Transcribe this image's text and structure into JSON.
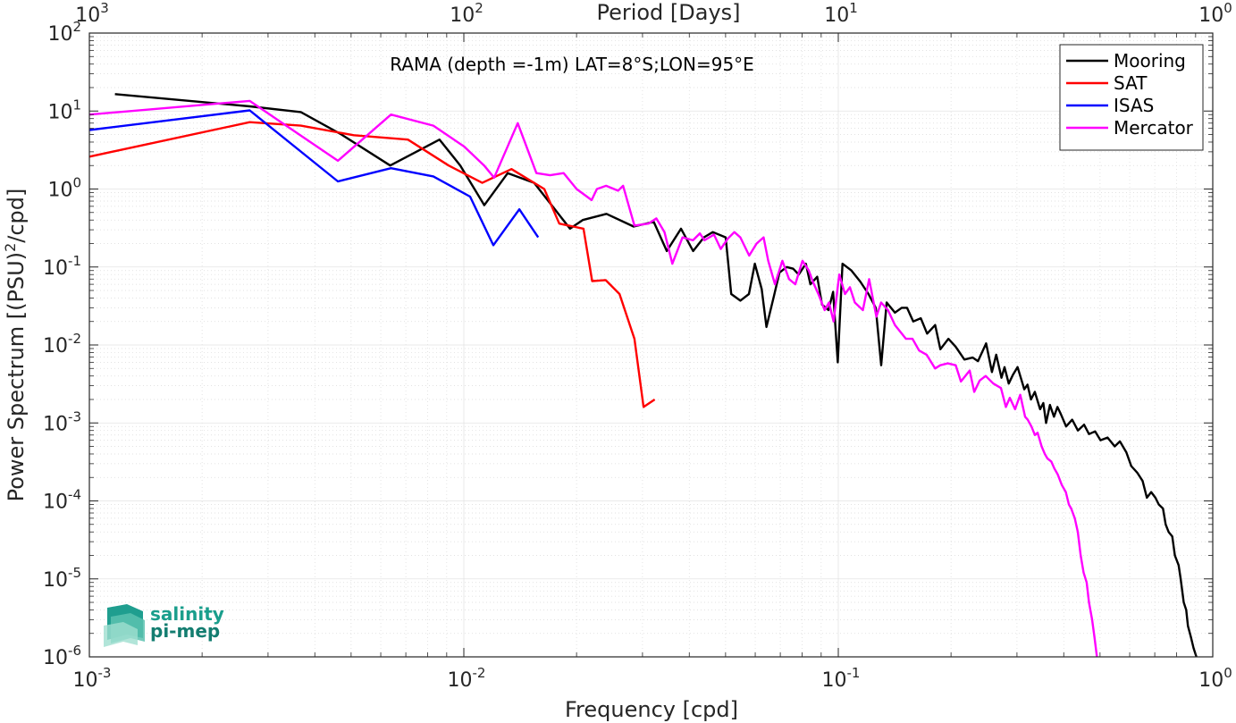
{
  "chart_data": {
    "type": "line",
    "annotation": "RAMA (depth =-1m) LAT=8°S;LON=95°E",
    "xlabel": "Frequency [cpd]",
    "ylabel": "Power Spectrum [(PSU)²/cpd]",
    "ylabel_parts": {
      "pre": "Power Spectrum [(PSU)",
      "sup": "2",
      "post": "/cpd]"
    },
    "top_xlabel": "Period [Days]",
    "xscale": "log",
    "yscale": "log",
    "xlim": [
      0.001,
      1
    ],
    "ylim": [
      1e-06,
      100
    ],
    "x_ticks": [
      {
        "base": "10",
        "exp": "-3",
        "value": 0.001
      },
      {
        "base": "10",
        "exp": "-2",
        "value": 0.01
      },
      {
        "base": "10",
        "exp": "-1",
        "value": 0.1
      },
      {
        "base": "10",
        "exp": "0",
        "value": 1
      }
    ],
    "top_ticks": [
      {
        "base": "10",
        "exp": "3",
        "value": 0.001
      },
      {
        "base": "10",
        "exp": "2",
        "value": 0.01
      },
      {
        "base": "10",
        "exp": "1",
        "value": 0.1
      },
      {
        "base": "10",
        "exp": "0",
        "value": 1
      }
    ],
    "y_ticks": [
      {
        "base": "10",
        "exp": "2",
        "value": 100
      },
      {
        "base": "10",
        "exp": "1",
        "value": 10
      },
      {
        "base": "10",
        "exp": "0",
        "value": 1
      },
      {
        "base": "10",
        "exp": "-1",
        "value": 0.1
      },
      {
        "base": "10",
        "exp": "-2",
        "value": 0.01
      },
      {
        "base": "10",
        "exp": "-3",
        "value": 0.001
      },
      {
        "base": "10",
        "exp": "-4",
        "value": 0.0001
      },
      {
        "base": "10",
        "exp": "-5",
        "value": 1e-05
      },
      {
        "base": "10",
        "exp": "-6",
        "value": 1e-06
      }
    ],
    "grid": true,
    "legend_position": "top-right",
    "series": [
      {
        "name": "Mooring",
        "color": "#000000",
        "points": [
          [
            0.00117,
            16.5
          ],
          [
            0.00268,
            11.5
          ],
          [
            0.00367,
            9.7
          ],
          [
            0.00471,
            5.0
          ],
          [
            0.00636,
            2.0
          ],
          [
            0.00861,
            4.3
          ],
          [
            0.00978,
            2.0
          ],
          [
            0.01134,
            0.62
          ],
          [
            0.0131,
            1.6
          ],
          [
            0.01541,
            1.2
          ],
          [
            0.01921,
            0.31
          ],
          [
            0.02077,
            0.4
          ],
          [
            0.02404,
            0.48
          ],
          [
            0.02841,
            0.33
          ],
          [
            0.03215,
            0.38
          ],
          [
            0.03484,
            0.16
          ],
          [
            0.03801,
            0.31
          ],
          [
            0.04096,
            0.16
          ],
          [
            0.04375,
            0.24
          ],
          [
            0.04624,
            0.28
          ],
          [
            0.05003,
            0.24
          ],
          [
            0.05178,
            0.045
          ],
          [
            0.05476,
            0.037
          ],
          [
            0.05772,
            0.045
          ],
          [
            0.05984,
            0.11
          ],
          [
            0.06243,
            0.052
          ],
          [
            0.06429,
            0.017
          ],
          [
            0.06729,
            0.042
          ],
          [
            0.06966,
            0.085
          ],
          [
            0.07283,
            0.1
          ],
          [
            0.07576,
            0.095
          ],
          [
            0.07838,
            0.08
          ],
          [
            0.0819,
            0.11
          ],
          [
            0.08425,
            0.06
          ],
          [
            0.08783,
            0.075
          ],
          [
            0.0905,
            0.033
          ],
          [
            0.09412,
            0.028
          ],
          [
            0.09688,
            0.048
          ],
          [
            0.09965,
            0.006
          ],
          [
            0.1026,
            0.11
          ],
          [
            0.1084,
            0.09
          ],
          [
            0.1145,
            0.065
          ],
          [
            0.1204,
            0.045
          ],
          [
            0.1259,
            0.03
          ],
          [
            0.1302,
            0.0055
          ],
          [
            0.1346,
            0.035
          ],
          [
            0.1417,
            0.026
          ],
          [
            0.1477,
            0.03
          ],
          [
            0.1526,
            0.03
          ],
          [
            0.1586,
            0.02
          ],
          [
            0.1661,
            0.022
          ],
          [
            0.1727,
            0.014
          ],
          [
            0.1814,
            0.018
          ],
          [
            0.1873,
            0.0088
          ],
          [
            0.1968,
            0.012
          ],
          [
            0.2058,
            0.0095
          ],
          [
            0.2172,
            0.0065
          ],
          [
            0.2285,
            0.0069
          ],
          [
            0.2361,
            0.0062
          ],
          [
            0.2482,
            0.0105
          ],
          [
            0.2572,
            0.0045
          ],
          [
            0.2641,
            0.0075
          ],
          [
            0.2728,
            0.0038
          ],
          [
            0.2779,
            0.0052
          ],
          [
            0.2852,
            0.0032
          ],
          [
            0.2924,
            0.0041
          ],
          [
            0.3012,
            0.0052
          ],
          [
            0.3067,
            0.0039
          ],
          [
            0.3138,
            0.0027
          ],
          [
            0.3201,
            0.0031
          ],
          [
            0.327,
            0.002
          ],
          [
            0.3349,
            0.0025
          ],
          [
            0.3459,
            0.0015
          ],
          [
            0.3528,
            0.0018
          ],
          [
            0.3589,
            0.001
          ],
          [
            0.3675,
            0.0017
          ],
          [
            0.3767,
            0.0012
          ],
          [
            0.3848,
            0.0016
          ],
          [
            0.3929,
            0.0013
          ],
          [
            0.4058,
            0.0009
          ],
          [
            0.4212,
            0.0011
          ],
          [
            0.4364,
            0.0008
          ],
          [
            0.4533,
            0.00095
          ],
          [
            0.4671,
            0.00072
          ],
          [
            0.4852,
            0.00078
          ],
          [
            0.5016,
            0.0006
          ],
          [
            0.5237,
            0.00065
          ],
          [
            0.5472,
            0.0005
          ],
          [
            0.5651,
            0.00058
          ],
          [
            0.5878,
            0.00042
          ],
          [
            0.6059,
            0.00028
          ],
          [
            0.6287,
            0.00023
          ],
          [
            0.6497,
            0.00018
          ],
          [
            0.667,
            0.00011
          ],
          [
            0.6848,
            0.00013
          ],
          [
            0.7028,
            0.00011
          ],
          [
            0.7174,
            9e-05
          ],
          [
            0.7364,
            8e-05
          ],
          [
            0.7485,
            5e-05
          ],
          [
            0.7623,
            4e-05
          ],
          [
            0.7795,
            3.5e-05
          ],
          [
            0.7921,
            2e-05
          ],
          [
            0.8107,
            1.5e-05
          ],
          [
            0.8209,
            1e-05
          ],
          [
            0.8365,
            5e-06
          ],
          [
            0.8495,
            4e-06
          ],
          [
            0.8582,
            2.5e-06
          ],
          [
            0.8742,
            1.8e-06
          ],
          [
            0.8885,
            1.3e-06
          ],
          [
            0.9045,
            1e-06
          ]
        ]
      },
      {
        "name": "SAT",
        "color": "#ff0000",
        "points": [
          [
            0.001,
            2.6
          ],
          [
            0.00268,
            7.2
          ],
          [
            0.00367,
            6.5
          ],
          [
            0.00508,
            4.9
          ],
          [
            0.00709,
            4.3
          ],
          [
            0.00911,
            2.0
          ],
          [
            0.0112,
            1.2
          ],
          [
            0.0134,
            1.8
          ],
          [
            0.0164,
            1.0
          ],
          [
            0.01798,
            0.36
          ],
          [
            0.0196,
            0.33
          ],
          [
            0.02087,
            0.31
          ],
          [
            0.02202,
            0.066
          ],
          [
            0.02392,
            0.068
          ],
          [
            0.02605,
            0.045
          ],
          [
            0.02855,
            0.012
          ],
          [
            0.0302,
            0.0016
          ],
          [
            0.03234,
            0.002
          ]
        ]
      },
      {
        "name": "ISAS",
        "color": "#0000ff",
        "points": [
          [
            0.001,
            5.7
          ],
          [
            0.00268,
            10.2
          ],
          [
            0.00461,
            1.25
          ],
          [
            0.00639,
            1.85
          ],
          [
            0.00829,
            1.45
          ],
          [
            0.01039,
            0.8
          ],
          [
            0.01199,
            0.19
          ],
          [
            0.01407,
            0.55
          ],
          [
            0.0158,
            0.24
          ]
        ]
      },
      {
        "name": "Mercator",
        "color": "#ff00ff",
        "points": [
          [
            0.001,
            9.0
          ],
          [
            0.00268,
            13.5
          ],
          [
            0.00461,
            2.3
          ],
          [
            0.00639,
            9.0
          ],
          [
            0.00829,
            6.5
          ],
          [
            0.01002,
            3.5
          ],
          [
            0.01133,
            2.0
          ],
          [
            0.01205,
            1.4
          ],
          [
            0.01393,
            7.0
          ],
          [
            0.01562,
            1.6
          ],
          [
            0.01699,
            1.5
          ],
          [
            0.01848,
            1.6
          ],
          [
            0.02001,
            1.0
          ],
          [
            0.02194,
            0.72
          ],
          [
            0.02267,
            1.0
          ],
          [
            0.02398,
            1.1
          ],
          [
            0.02582,
            0.95
          ],
          [
            0.02662,
            1.1
          ],
          [
            0.02855,
            0.34
          ],
          [
            0.03113,
            0.36
          ],
          [
            0.03266,
            0.42
          ],
          [
            0.03434,
            0.28
          ],
          [
            0.03604,
            0.11
          ],
          [
            0.03837,
            0.24
          ],
          [
            0.04091,
            0.22
          ],
          [
            0.04269,
            0.27
          ],
          [
            0.04389,
            0.22
          ],
          [
            0.04656,
            0.26
          ],
          [
            0.04855,
            0.17
          ],
          [
            0.05064,
            0.23
          ],
          [
            0.05279,
            0.28
          ],
          [
            0.05475,
            0.24
          ],
          [
            0.05782,
            0.14
          ],
          [
            0.06053,
            0.2
          ],
          [
            0.06317,
            0.24
          ],
          [
            0.06499,
            0.12
          ],
          [
            0.06772,
            0.06
          ],
          [
            0.07088,
            0.12
          ],
          [
            0.07386,
            0.07
          ],
          [
            0.07679,
            0.06
          ],
          [
            0.08021,
            0.12
          ],
          [
            0.08341,
            0.09
          ],
          [
            0.08548,
            0.065
          ],
          [
            0.08846,
            0.045
          ],
          [
            0.09195,
            0.028
          ],
          [
            0.09446,
            0.035
          ],
          [
            0.09714,
            0.02
          ],
          [
            0.1006,
            0.08
          ],
          [
            0.1042,
            0.045
          ],
          [
            0.1074,
            0.055
          ],
          [
            0.1107,
            0.035
          ],
          [
            0.1163,
            0.028
          ],
          [
            0.1209,
            0.07
          ],
          [
            0.1264,
            0.023
          ],
          [
            0.1301,
            0.035
          ],
          [
            0.1357,
            0.028
          ],
          [
            0.1417,
            0.018
          ],
          [
            0.1477,
            0.014
          ],
          [
            0.1516,
            0.012
          ],
          [
            0.1578,
            0.012
          ],
          [
            0.1643,
            0.0085
          ],
          [
            0.1721,
            0.0075
          ],
          [
            0.1813,
            0.005
          ],
          [
            0.1872,
            0.0055
          ],
          [
            0.1961,
            0.0058
          ],
          [
            0.2059,
            0.0055
          ],
          [
            0.2126,
            0.0034
          ],
          [
            0.2243,
            0.0047
          ],
          [
            0.2307,
            0.0025
          ],
          [
            0.2385,
            0.0035
          ],
          [
            0.2475,
            0.004
          ],
          [
            0.2595,
            0.0032
          ],
          [
            0.2718,
            0.0028
          ],
          [
            0.2802,
            0.0016
          ],
          [
            0.2871,
            0.0021
          ],
          [
            0.2965,
            0.0015
          ],
          [
            0.3062,
            0.0023
          ],
          [
            0.3153,
            0.0012
          ],
          [
            0.3205,
            0.0011
          ],
          [
            0.3279,
            0.0009
          ],
          [
            0.3351,
            0.0007
          ],
          [
            0.3406,
            0.00075
          ],
          [
            0.3491,
            0.0005
          ],
          [
            0.3561,
            0.0004
          ],
          [
            0.3618,
            0.00035
          ],
          [
            0.3705,
            0.00032
          ],
          [
            0.3776,
            0.00026
          ],
          [
            0.3851,
            0.00022
          ],
          [
            0.3952,
            0.00016
          ],
          [
            0.4052,
            0.00013
          ],
          [
            0.4128,
            9e-05
          ],
          [
            0.4187,
            8e-05
          ],
          [
            0.4281,
            6e-05
          ],
          [
            0.4362,
            4e-05
          ],
          [
            0.4438,
            2e-05
          ],
          [
            0.4521,
            1.2e-05
          ],
          [
            0.4606,
            9e-06
          ],
          [
            0.4671,
            5e-06
          ],
          [
            0.4762,
            3e-06
          ],
          [
            0.483,
            1.8e-06
          ],
          [
            0.4905,
            1e-06
          ]
        ]
      }
    ],
    "logo": {
      "line1": "salinity",
      "line2": "pi-mep"
    }
  }
}
